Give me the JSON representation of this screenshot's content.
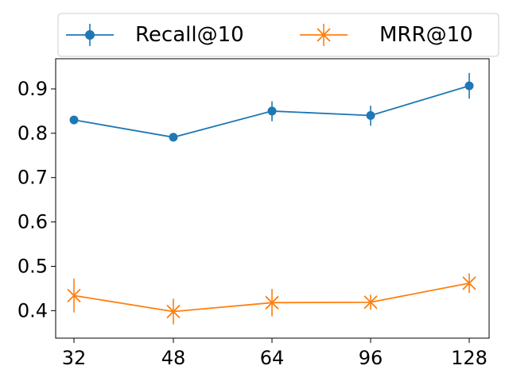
{
  "chart_data": {
    "type": "line",
    "categories": [
      "32",
      "48",
      "64",
      "96",
      "128"
    ],
    "series": [
      {
        "name": "Recall@10",
        "color": "#1f77b4",
        "marker": "circle",
        "values": [
          0.83,
          0.791,
          0.85,
          0.84,
          0.907
        ],
        "err_low": [
          0.826,
          0.783,
          0.827,
          0.817,
          0.878
        ],
        "err_high": [
          0.834,
          0.799,
          0.872,
          0.862,
          0.936
        ]
      },
      {
        "name": "MRR@10",
        "color": "#ff7f0e",
        "marker": "x",
        "values": [
          0.434,
          0.398,
          0.418,
          0.419,
          0.462
        ],
        "err_low": [
          0.396,
          0.369,
          0.387,
          0.402,
          0.44
        ],
        "err_high": [
          0.472,
          0.427,
          0.449,
          0.436,
          0.484
        ]
      }
    ],
    "y_ticks": [
      "0.4",
      "0.5",
      "0.6",
      "0.7",
      "0.8",
      "0.9"
    ],
    "ylim": [
      0.338,
      0.968
    ],
    "xlabel": "",
    "ylabel": "",
    "title": "",
    "grid": false,
    "legend": "top-center, outside plot, 2 columns"
  }
}
